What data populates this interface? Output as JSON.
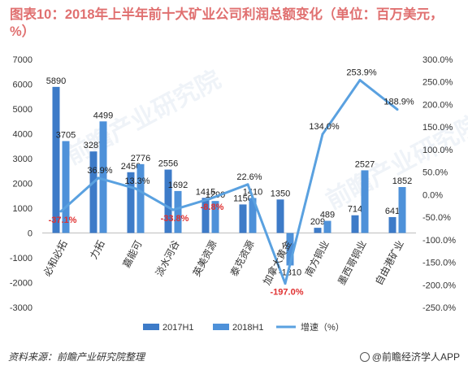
{
  "title": "图表10：2018年上半年前十大矿业公司利润总额变化（单位：百万美元，%）",
  "source": "资料来源：前瞻产业研究院整理",
  "brand": "@前瞻经济学人APP",
  "watermark": "前瞻产业研究院",
  "colors": {
    "bar2017": "#3d7bc8",
    "bar2018": "#4e91d9",
    "line": "#5aa1e0",
    "title": "#e07070",
    "negLabel": "#e03030"
  },
  "chart_data": {
    "type": "bar",
    "categories": [
      "必和必拓",
      "力拓",
      "嘉能可",
      "淡水河谷",
      "英美资源",
      "泰克资源",
      "加拿大黄金",
      "南方铜业",
      "墨西哥铜业",
      "自由港矿业"
    ],
    "series": [
      {
        "name": "2017H1",
        "type": "bar",
        "axis": "left",
        "values": [
          5890,
          3287,
          2450,
          2556,
          1415,
          1150,
          1350,
          209,
          714,
          641
        ]
      },
      {
        "name": "2018H1",
        "type": "bar",
        "axis": "left",
        "values": [
          3705,
          4499,
          2776,
          1692,
          1290,
          1410,
          -1310,
          489,
          2527,
          1852
        ]
      },
      {
        "name": "增速（%）",
        "type": "line",
        "axis": "right",
        "values": [
          -37.1,
          36.9,
          13.3,
          -33.8,
          -8.8,
          22.6,
          -197.0,
          134.0,
          253.9,
          188.9
        ]
      }
    ],
    "bar_labels_2017": [
      "5890",
      "3287",
      "2450",
      "2556",
      "1415",
      "1150",
      "1350",
      "209",
      "714",
      "641"
    ],
    "bar_labels_2018": [
      "3705",
      "4499",
      "2776",
      "1692",
      "1290",
      "1410",
      "-1310",
      "489",
      "2527",
      "1852"
    ],
    "growth_labels": [
      "-37.1%",
      "36.9%",
      "13.3%",
      "-33.8%",
      "-8.8%",
      "22.6%",
      "-197.0%",
      "134.0%",
      "253.9%",
      "188.9%"
    ],
    "left_axis": {
      "min": -3000,
      "max": 7000,
      "step": 1000,
      "ticks": [
        "-3000",
        "-2000",
        "-1000",
        "0",
        "1000",
        "2000",
        "3000",
        "4000",
        "5000",
        "6000",
        "7000"
      ]
    },
    "right_axis": {
      "min": -250,
      "max": 300,
      "step": 50,
      "ticks": [
        "-250.0%",
        "-200.0%",
        "-150.0%",
        "-100.0%",
        "-50.0%",
        "0.0%",
        "50.0%",
        "100.0%",
        "150.0%",
        "200.0%",
        "250.0%",
        "300.0%"
      ]
    },
    "legend": [
      "2017H1",
      "2018H1",
      "增速（%）"
    ],
    "legend_position": "bottom"
  }
}
